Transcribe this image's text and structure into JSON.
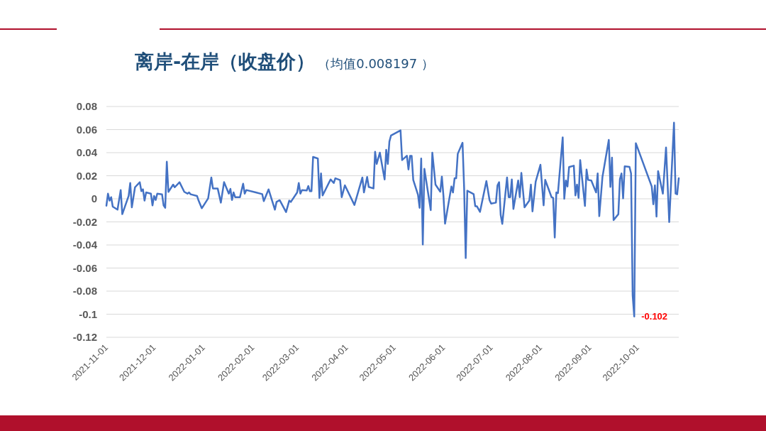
{
  "chart_data": {
    "type": "line",
    "title": "离岸-在岸（收盘价）",
    "subtitle": "（均值0.008197 ）",
    "x": [
      "2021-11-01",
      "2021-11-02",
      "2021-11-03",
      "2021-11-04",
      "2021-11-05",
      "2021-11-08",
      "2021-11-10",
      "2021-11-11",
      "2021-11-15",
      "2021-11-16",
      "2021-11-17",
      "2021-11-19",
      "2021-11-22",
      "2021-11-23",
      "2021-11-24",
      "2021-11-25",
      "2021-11-26",
      "2021-11-29",
      "2021-11-30",
      "2021-12-01",
      "2021-12-02",
      "2021-12-03",
      "2021-12-06",
      "2021-12-07",
      "2021-12-08",
      "2021-12-09",
      "2021-12-10",
      "2021-12-13",
      "2021-12-14",
      "2021-12-17",
      "2021-12-20",
      "2021-12-22",
      "2021-12-23",
      "2021-12-24",
      "2021-12-28",
      "2021-12-29",
      "2021-12-31",
      "2022-01-04",
      "2022-01-06",
      "2022-01-07",
      "2022-01-10",
      "2022-01-12",
      "2022-01-14",
      "2022-01-17",
      "2022-01-18",
      "2022-01-19",
      "2022-01-20",
      "2022-01-21",
      "2022-01-24",
      "2022-01-26",
      "2022-01-27",
      "2022-01-28",
      "2022-02-03",
      "2022-02-07",
      "2022-02-08",
      "2022-02-11",
      "2022-02-15",
      "2022-02-16",
      "2022-02-18",
      "2022-02-22",
      "2022-02-24",
      "2022-02-25",
      "2022-03-01",
      "2022-03-02",
      "2022-03-03",
      "2022-03-04",
      "2022-03-07",
      "2022-03-08",
      "2022-03-09",
      "2022-03-10",
      "2022-03-11",
      "2022-03-14",
      "2022-03-15",
      "2022-03-16",
      "2022-03-17",
      "2022-03-22",
      "2022-03-24",
      "2022-03-25",
      "2022-03-28",
      "2022-03-29",
      "2022-03-31",
      "2022-04-06",
      "2022-04-11",
      "2022-04-12",
      "2022-04-14",
      "2022-04-15",
      "2022-04-18",
      "2022-04-19",
      "2022-04-20",
      "2022-04-22",
      "2022-04-25",
      "2022-04-26",
      "2022-04-27",
      "2022-04-28",
      "2022-04-29",
      "2022-05-05",
      "2022-05-06",
      "2022-05-09",
      "2022-05-10",
      "2022-05-11",
      "2022-05-12",
      "2022-05-13",
      "2022-05-16",
      "2022-05-17",
      "2022-05-18",
      "2022-05-19",
      "2022-05-20",
      "2022-05-24",
      "2022-05-25",
      "2022-05-27",
      "2022-05-30",
      "2022-05-31",
      "2022-06-01",
      "2022-06-02",
      "2022-06-06",
      "2022-06-07",
      "2022-06-08",
      "2022-06-09",
      "2022-06-10",
      "2022-06-13",
      "2022-06-14",
      "2022-06-15",
      "2022-06-16",
      "2022-06-20",
      "2022-06-21",
      "2022-06-22",
      "2022-06-24",
      "2022-06-28",
      "2022-06-30",
      "2022-07-01",
      "2022-07-04",
      "2022-07-05",
      "2022-07-06",
      "2022-07-07",
      "2022-07-08",
      "2022-07-11",
      "2022-07-12",
      "2022-07-13",
      "2022-07-14",
      "2022-07-15",
      "2022-07-18",
      "2022-07-19",
      "2022-07-20",
      "2022-07-22",
      "2022-07-25",
      "2022-07-26",
      "2022-07-27",
      "2022-07-29",
      "2022-08-01",
      "2022-08-03",
      "2022-08-04",
      "2022-08-08",
      "2022-08-09",
      "2022-08-10",
      "2022-08-11",
      "2022-08-12",
      "2022-08-15",
      "2022-08-16",
      "2022-08-17",
      "2022-08-18",
      "2022-08-19",
      "2022-08-22",
      "2022-08-23",
      "2022-08-24",
      "2022-08-25",
      "2022-08-26",
      "2022-08-29",
      "2022-08-30",
      "2022-08-31",
      "2022-09-02",
      "2022-09-05",
      "2022-09-06",
      "2022-09-07",
      "2022-09-09",
      "2022-09-13",
      "2022-09-14",
      "2022-09-15",
      "2022-09-16",
      "2022-09-19",
      "2022-09-20",
      "2022-09-21",
      "2022-09-22",
      "2022-09-23",
      "2022-09-26",
      "2022-09-27",
      "2022-09-28",
      "2022-09-29",
      "2022-09-30",
      "2022-10-10",
      "2022-10-11",
      "2022-10-12",
      "2022-10-13",
      "2022-10-14",
      "2022-10-17",
      "2022-10-19",
      "2022-10-21",
      "2022-10-24",
      "2022-10-25",
      "2022-10-26",
      "2022-10-27"
    ],
    "series": [
      {
        "color": "#4472c4",
        "values": [
          -0.006,
          0.0045,
          -0.0016,
          0.0014,
          -0.0068,
          -0.0094,
          0.0076,
          -0.0133,
          0.0025,
          0.0137,
          -0.0074,
          0.01,
          0.0144,
          0.0066,
          0.0082,
          -0.0016,
          0.0055,
          0.0045,
          -0.0057,
          0.0025,
          -0.001,
          0.0045,
          0.0039,
          -0.0057,
          -0.0078,
          0.0322,
          0.006,
          0.0123,
          0.01,
          0.0144,
          0.006,
          0.0045,
          0.0055,
          0.0039,
          0.0025,
          -0.0016,
          -0.0082,
          0.0004,
          0.0185,
          0.009,
          0.009,
          -0.0033,
          0.0144,
          0.0045,
          0.0086,
          -0.001,
          0.0055,
          0.0014,
          0.0014,
          0.0131,
          0.0045,
          0.0076,
          0.0055,
          0.0041,
          -0.002,
          0.0082,
          -0.0094,
          -0.0027,
          -0.0012,
          -0.0115,
          -0.0016,
          -0.0027,
          0.0055,
          0.0137,
          0.0045,
          0.0076,
          0.0072,
          0.0111,
          0.0066,
          0.0066,
          0.0363,
          0.0349,
          0.0008,
          0.022,
          0.0029,
          0.0168,
          0.0137,
          0.0178,
          0.0162,
          0.0014,
          0.0117,
          -0.0053,
          0.0185,
          0.0055,
          0.0189,
          0.0103,
          0.009,
          0.0408,
          0.0302,
          0.04,
          0.0168,
          0.0425,
          0.0302,
          0.0496,
          0.0548,
          0.0593,
          0.0336,
          0.0373,
          0.0254,
          0.0373,
          0.0373,
          0.0164,
          0.0035,
          -0.0078,
          0.0349,
          -0.0396,
          0.026,
          -0.0098,
          0.04,
          0.0123,
          0.0062,
          0.0193,
          0.0025,
          -0.0215,
          0.0107,
          0.0055,
          0.0178,
          0.0178,
          0.039,
          0.0486,
          0.0096,
          -0.0513,
          0.007,
          0.0041,
          -0.0064,
          -0.0064,
          -0.0113,
          0.0154,
          -0.0012,
          -0.0041,
          -0.0033,
          0.0117,
          0.0144,
          -0.014,
          -0.0217,
          0.0185,
          0.0014,
          0.0014,
          0.0168,
          -0.0088,
          0.0158,
          0.0014,
          0.0224,
          -0.0074,
          -0.0016,
          0.0123,
          -0.0109,
          0.0148,
          0.0295,
          -0.0057,
          0.0164,
          0.0014,
          0.0008,
          -0.0335,
          0.0055,
          0.0049,
          0.0533,
          0,
          0.0158,
          0.0107,
          0.0275,
          0.0287,
          0.0029,
          0.0123,
          0.0008,
          0.0336,
          -0.0062,
          0.0254,
          0.0164,
          0.0158,
          0.0055,
          0.022,
          -0.015,
          0.0189,
          0.0511,
          0.0103,
          0.0357,
          -0.0185,
          -0.0133,
          0.0172,
          0.022,
          0.0004,
          0.0281,
          0.0277,
          0.022,
          -0.0837,
          -0.102,
          0.0482,
          0.0107,
          -0.0047,
          0.0117,
          -0.0154,
          0.024,
          0.0045,
          0.0445,
          -0.0201,
          0.066,
          0.0045,
          0.0039,
          0.0178
        ]
      }
    ],
    "xlim": [
      "2021-11-01",
      "2022-10-27"
    ],
    "xticks": [
      "2021-11-01",
      "2021-12-01",
      "2022-01-01",
      "2022-02-01",
      "2022-03-01",
      "2022-04-01",
      "2022-05-01",
      "2022-06-01",
      "2022-07-01",
      "2022-08-01",
      "2022-09-01",
      "2022-10-01"
    ],
    "ylim": [
      -0.12,
      0.08
    ],
    "yticks": [
      0.08,
      0.06,
      0.04,
      0.02,
      0,
      -0.02,
      -0.04,
      -0.06,
      -0.08,
      -0.1,
      -0.12
    ],
    "grid": "y",
    "marker": "none",
    "line_style": "solid",
    "annotations": [
      {
        "text": "-0.102",
        "x": "2022-09-29",
        "y": -0.102
      }
    ]
  }
}
